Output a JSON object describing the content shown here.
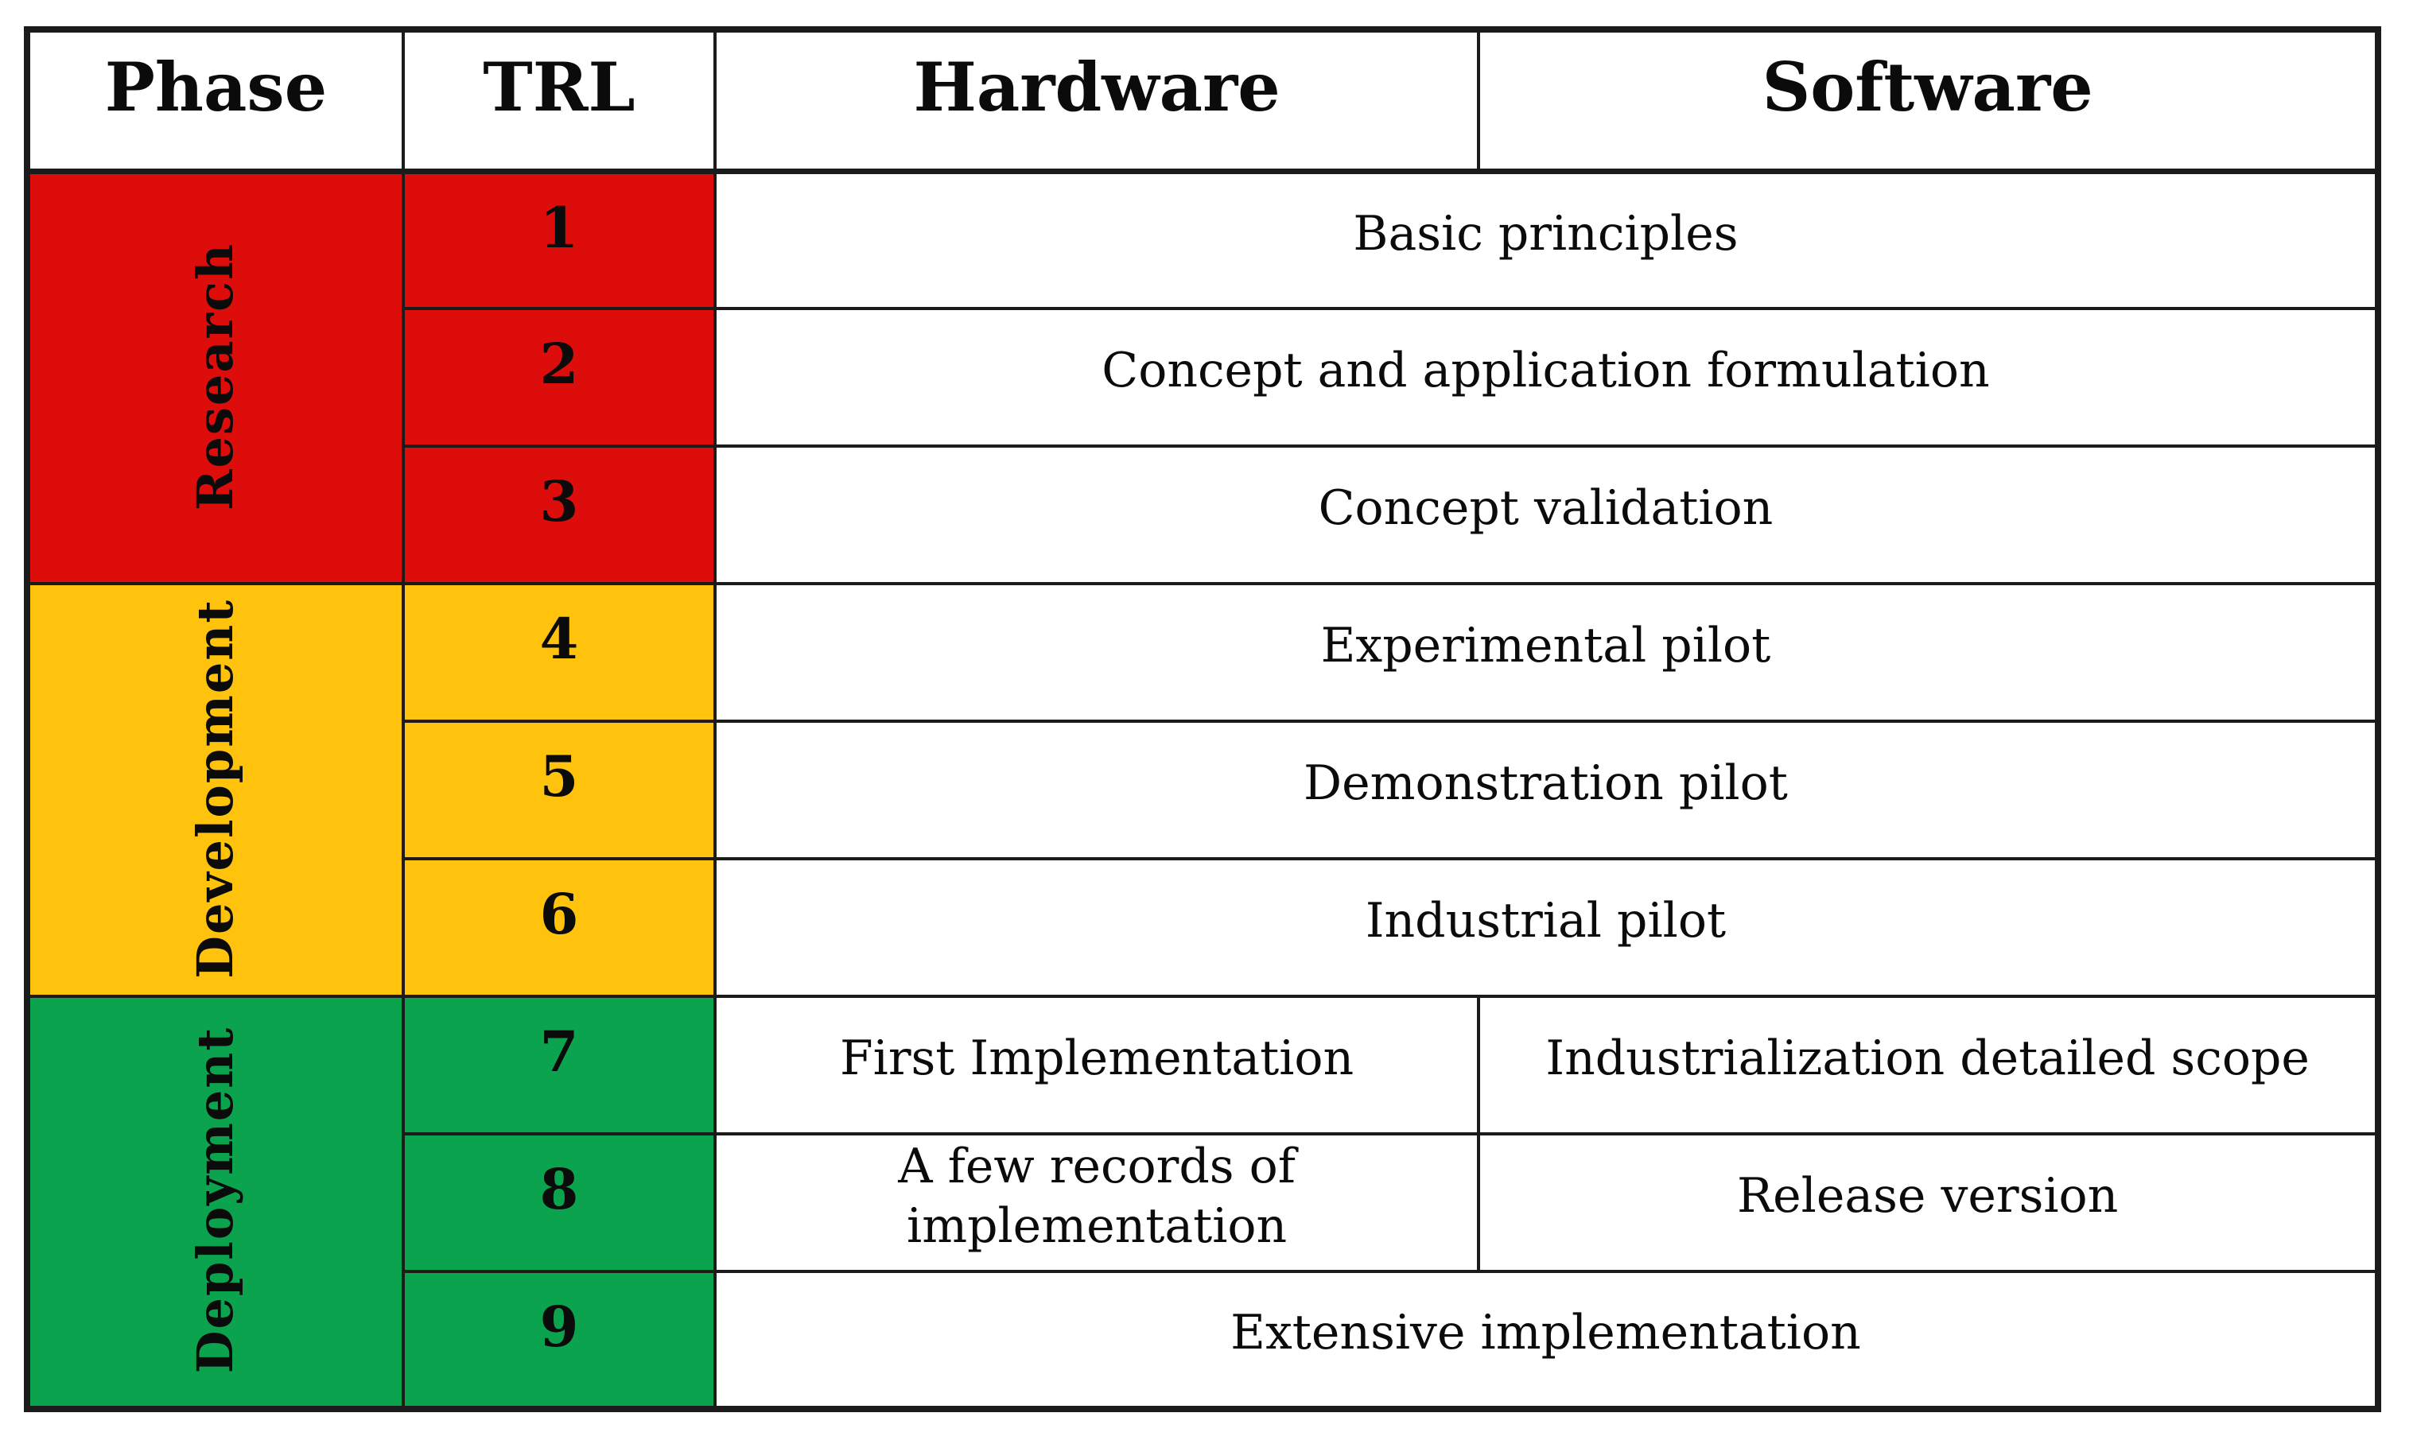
{
  "columns": {
    "phase": "Phase",
    "trl": "TRL",
    "hardware": "Hardware",
    "software": "Software"
  },
  "colors": {
    "research": "#DC0D0B",
    "development": "#FFC20D",
    "deployment": "#0CA34E",
    "border": "#1b1b1b",
    "background": "#ffffff",
    "text": "#0b0b0b"
  },
  "phases": [
    {
      "label": "Research",
      "trl_range": "1-3"
    },
    {
      "label": "Development",
      "trl_range": "4-6"
    },
    {
      "label": "Deployment",
      "trl_range": "7-9"
    }
  ],
  "rows": [
    {
      "trl": "1",
      "hardware_software": "Basic principles"
    },
    {
      "trl": "2",
      "hardware_software": "Concept and application formulation"
    },
    {
      "trl": "3",
      "hardware_software": "Concept validation"
    },
    {
      "trl": "4",
      "hardware_software": "Experimental pilot"
    },
    {
      "trl": "5",
      "hardware_software": "Demonstration pilot"
    },
    {
      "trl": "6",
      "hardware_software": "Industrial pilot"
    },
    {
      "trl": "7",
      "hardware": "First Implementation",
      "software": "Industrialization detailed scope"
    },
    {
      "trl": "8",
      "hardware": "A few records of implementation",
      "software": "Release version"
    },
    {
      "trl": "9",
      "hardware_software": "Extensive implementation"
    }
  ]
}
